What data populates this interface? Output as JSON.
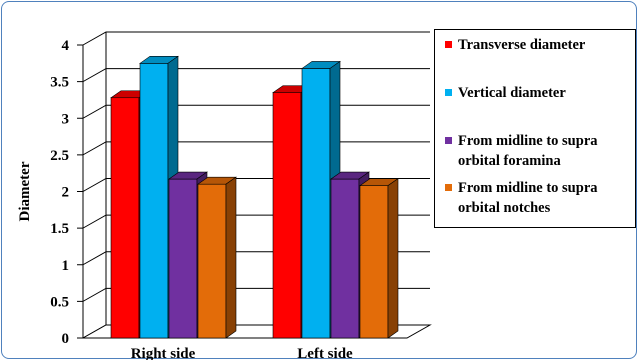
{
  "chart_data": {
    "type": "bar",
    "categories": [
      "Right side",
      "Left side"
    ],
    "series": [
      {
        "name": "Transverse diameter",
        "values": [
          3.28,
          3.35
        ],
        "color": "#ff0000"
      },
      {
        "name": "Vertical diameter",
        "values": [
          3.75,
          3.68
        ],
        "color": "#00b0f0"
      },
      {
        "name": "From midline to supra orbital foramina",
        "values": [
          2.17,
          2.17
        ],
        "color": "#7030a0"
      },
      {
        "name": "From midline to supra orbital notches",
        "values": [
          2.1,
          2.08
        ],
        "color": "#e36c09"
      }
    ],
    "ylabel": "Diameter",
    "xlabel": "",
    "ylim": [
      0,
      4
    ],
    "yticks": [
      "0",
      "0.5",
      "1",
      "1.5",
      "2",
      "2.5",
      "3",
      "3.5",
      "4"
    ],
    "grid": true,
    "legend_position": "right",
    "style": "3d-clustered-column"
  }
}
